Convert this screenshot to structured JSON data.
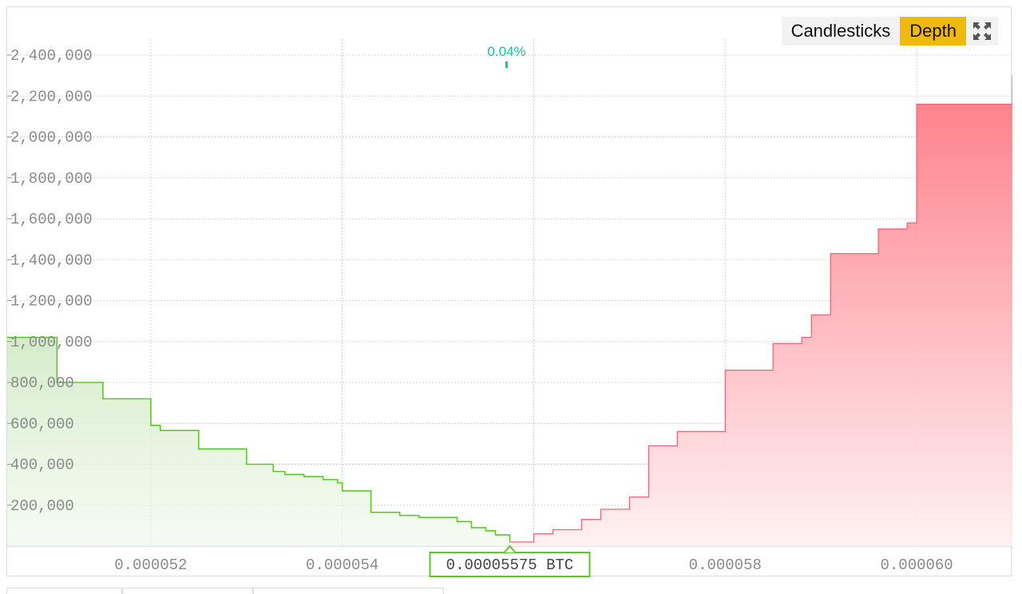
{
  "toolbar": {
    "candlesticks_label": "Candlesticks",
    "depth_label": "Depth",
    "active": "Depth",
    "expand_icon": "expand-icon"
  },
  "colors": {
    "bid": "#5cc72a",
    "ask": "#e66b79",
    "spread": "#1fbf93",
    "active_tab": "#f0b90b",
    "grid": "#d6d6d6"
  },
  "chart_data": {
    "type": "area",
    "xlabel": "",
    "ylabel": "",
    "xlim": [
      5.05e-05,
      6.1e-05
    ],
    "ylim": [
      0,
      2400000
    ],
    "grid": true,
    "x_ticks": [
      {
        "value": 5.2e-05,
        "label": "0.000052"
      },
      {
        "value": 5.4e-05,
        "label": "0.000054"
      },
      {
        "value": 5.8e-05,
        "label": "0.000058"
      },
      {
        "value": 6e-05,
        "label": "0.000060"
      }
    ],
    "y_ticks": [
      {
        "value": 200000,
        "label": "200,000"
      },
      {
        "value": 400000,
        "label": "400,000"
      },
      {
        "value": 600000,
        "label": "600,000"
      },
      {
        "value": 800000,
        "label": "800,000"
      },
      {
        "value": 1000000,
        "label": "1,000,000"
      },
      {
        "value": 1200000,
        "label": "1,200,000"
      },
      {
        "value": 1400000,
        "label": "1,400,000"
      },
      {
        "value": 1600000,
        "label": "1,600,000"
      },
      {
        "value": 1800000,
        "label": "1,800,000"
      },
      {
        "value": 2000000,
        "label": "2,000,000"
      },
      {
        "value": 2200000,
        "label": "2,200,000"
      },
      {
        "value": 2400000,
        "label": "2,400,000"
      }
    ],
    "mid_price": {
      "value": 5.575e-05,
      "label": "0.00005575 BTC"
    },
    "spread_label": "0.04%",
    "series": [
      {
        "side": "bid",
        "x": [
          5.05e-05,
          5.1e-05,
          5.102e-05,
          5.15e-05,
          5.2e-05,
          5.21e-05,
          5.25e-05,
          5.3e-05,
          5.328e-05,
          5.34e-05,
          5.36e-05,
          5.38e-05,
          5.395e-05,
          5.4e-05,
          5.43e-05,
          5.46e-05,
          5.48e-05,
          5.5e-05,
          5.52e-05,
          5.535e-05,
          5.55e-05,
          5.56e-05,
          5.575e-05
        ],
        "y": [
          1020000,
          1020000,
          800000,
          720000,
          590000,
          565000,
          475000,
          400000,
          365000,
          350000,
          340000,
          325000,
          310000,
          270000,
          165000,
          150000,
          140000,
          140000,
          120000,
          90000,
          75000,
          55000,
          20000
        ]
      },
      {
        "side": "ask",
        "x": [
          5.575e-05,
          5.6e-05,
          5.62e-05,
          5.65e-05,
          5.67e-05,
          5.7e-05,
          5.72e-05,
          5.75e-05,
          5.8e-05,
          5.85e-05,
          5.88e-05,
          5.89e-05,
          5.91e-05,
          5.96e-05,
          5.99e-05,
          6e-05,
          6.1e-05
        ],
        "y": [
          20000,
          60000,
          80000,
          130000,
          180000,
          240000,
          490000,
          560000,
          860000,
          990000,
          1020000,
          1130000,
          1430000,
          1550000,
          1580000,
          2160000,
          2300000
        ]
      }
    ]
  }
}
